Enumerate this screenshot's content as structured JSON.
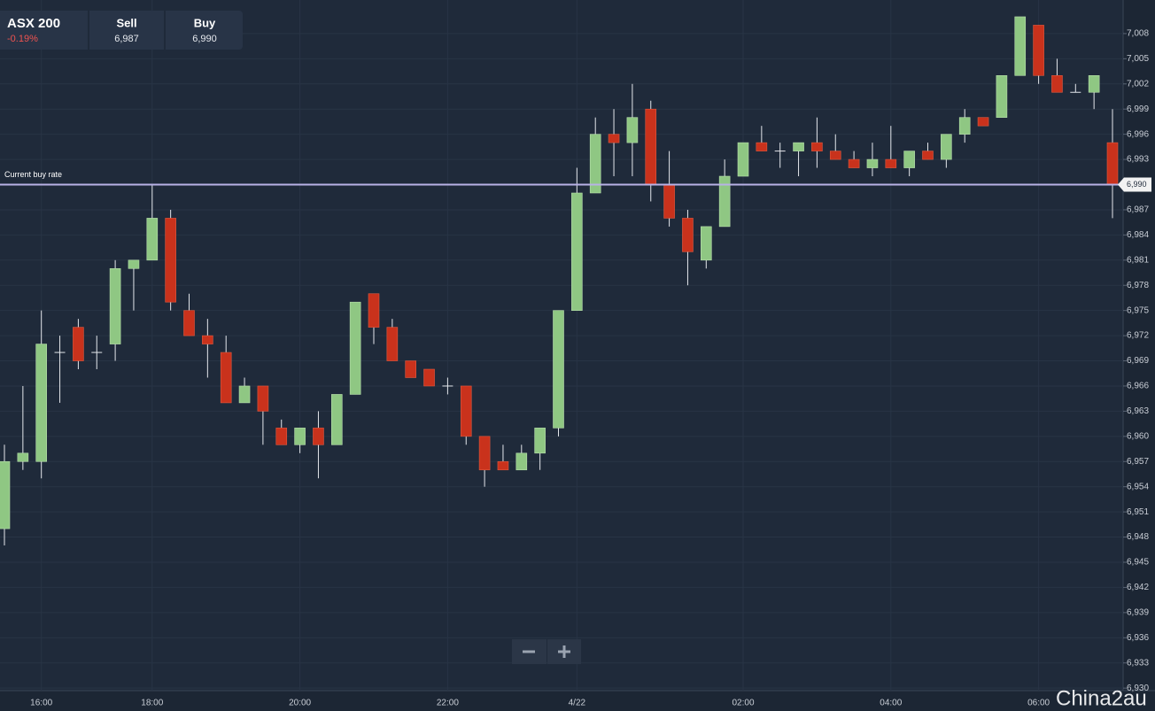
{
  "header": {
    "instrument": "ASX 200",
    "change": "-0.19%",
    "sell_label": "Sell",
    "sell": "6,987",
    "buy_label": "Buy",
    "buy": "6,990"
  },
  "watermark": "China2au",
  "chart_data": {
    "type": "candlestick",
    "categories": [
      null,
      null,
      "16:00",
      null,
      null,
      null,
      null,
      null,
      "18:00",
      null,
      null,
      null,
      null,
      null,
      null,
      null,
      "20:00",
      null,
      null,
      null,
      null,
      null,
      null,
      null,
      "22:00",
      null,
      null,
      null,
      null,
      null,
      null,
      "4/22",
      null,
      null,
      null,
      null,
      null,
      null,
      null,
      null,
      "02:00",
      null,
      null,
      null,
      null,
      null,
      null,
      null,
      "04:00",
      null,
      null,
      null,
      null,
      null,
      null,
      null,
      "06:00",
      null,
      null,
      null,
      null
    ],
    "open": [
      6949,
      6957,
      6957,
      6970,
      6973,
      6970,
      6971,
      6980,
      6981,
      6986,
      6975,
      6972,
      6970,
      6964,
      6966,
      6961,
      6959,
      6961,
      6959,
      6965,
      6977,
      6973,
      6969,
      6968,
      6966,
      6966,
      6960,
      6957,
      6956,
      6958,
      6961,
      6975,
      6989,
      6996,
      6995,
      6999,
      6990,
      6986,
      6981,
      6985,
      6991,
      6995,
      6994,
      6994,
      6995,
      6994,
      6993,
      6992,
      6993,
      6992,
      6994,
      6993,
      6996,
      6998,
      6998,
      7003,
      7009,
      7003,
      7001,
      7001,
      6995
    ],
    "high": [
      6959,
      6966,
      6975,
      6972,
      6974,
      6972,
      6981,
      6981,
      6990,
      6987,
      6977,
      6974,
      6972,
      6967,
      6966,
      6962,
      6961,
      6963,
      6965,
      6976,
      6977,
      6974,
      6969,
      6968,
      6967,
      6966,
      6960,
      6959,
      6959,
      6961,
      6975,
      6992,
      6998,
      6999,
      7002,
      7000,
      6994,
      6987,
      6985,
      6993,
      6995,
      6997,
      6995,
      6995,
      6998,
      6996,
      6994,
      6995,
      6997,
      6994,
      6995,
      6996,
      6999,
      6998,
      7003,
      7010,
      7009,
      7005,
      7002,
      7003,
      6999
    ],
    "low": [
      6947,
      6956,
      6955,
      6964,
      6968,
      6968,
      6969,
      6975,
      6981,
      6975,
      6972,
      6967,
      6964,
      6964,
      6959,
      6959,
      6958,
      6955,
      6959,
      6965,
      6971,
      6969,
      6967,
      6966,
      6965,
      6959,
      6954,
      6956,
      6956,
      6956,
      6960,
      6975,
      6989,
      6991,
      6991,
      6988,
      6985,
      6978,
      6980,
      6985,
      6991,
      6994,
      6992,
      6991,
      6992,
      6993,
      6992,
      6991,
      6992,
      6991,
      6993,
      6992,
      6995,
      6997,
      6998,
      7003,
      7002,
      7001,
      7001,
      6999,
      6986
    ],
    "close": [
      6957,
      6958,
      6971,
      6970,
      6969,
      6970,
      6980,
      6981,
      6986,
      6976,
      6972,
      6971,
      6964,
      6966,
      6963,
      6959,
      6961,
      6959,
      6965,
      6976,
      6973,
      6969,
      6967,
      6966,
      6966,
      6960,
      6956,
      6956,
      6958,
      6961,
      6975,
      6989,
      6996,
      6995,
      6998,
      6990,
      6986,
      6982,
      6985,
      6991,
      6995,
      6994,
      6994,
      6995,
      6994,
      6993,
      6992,
      6993,
      6992,
      6994,
      6993,
      6996,
      6998,
      6997,
      7003,
      7010,
      7003,
      7001,
      7001,
      7003,
      6990
    ],
    "up_color": "#8fc783",
    "down_color": "#c9321c",
    "ylim": [
      6929.7,
      7012
    ],
    "yticks": [
      {
        "value": 6930,
        "label": "6,930"
      },
      {
        "value": 6933,
        "label": "6,933"
      },
      {
        "value": 6936,
        "label": "6,936"
      },
      {
        "value": 6939,
        "label": "6,939"
      },
      {
        "value": 6942,
        "label": "6,942"
      },
      {
        "value": 6945,
        "label": "6,945"
      },
      {
        "value": 6948,
        "label": "6,948"
      },
      {
        "value": 6951,
        "label": "6,951"
      },
      {
        "value": 6954,
        "label": "6,954"
      },
      {
        "value": 6957,
        "label": "6,957"
      },
      {
        "value": 6960,
        "label": "6,960"
      },
      {
        "value": 6963,
        "label": "6,963"
      },
      {
        "value": 6966,
        "label": "6,966"
      },
      {
        "value": 6969,
        "label": "6,969"
      },
      {
        "value": 6972,
        "label": "6,972"
      },
      {
        "value": 6975,
        "label": "6,975"
      },
      {
        "value": 6978,
        "label": "6,978"
      },
      {
        "value": 6981,
        "label": "6,981"
      },
      {
        "value": 6984,
        "label": "6,984"
      },
      {
        "value": 6987,
        "label": "6,987"
      },
      {
        "value": 6990,
        "label": "6,990"
      },
      {
        "value": 6993,
        "label": "6,993"
      },
      {
        "value": 6996,
        "label": "6,996"
      },
      {
        "value": 6999,
        "label": "6,999"
      },
      {
        "value": 7002,
        "label": "7,002"
      },
      {
        "value": 7005,
        "label": "7,005"
      },
      {
        "value": 7008,
        "label": "7,008"
      }
    ],
    "grid": true,
    "current_rate": {
      "label": "Current buy rate",
      "value": 6990,
      "value_label": "6,990",
      "color": "#b8b2e6"
    }
  }
}
